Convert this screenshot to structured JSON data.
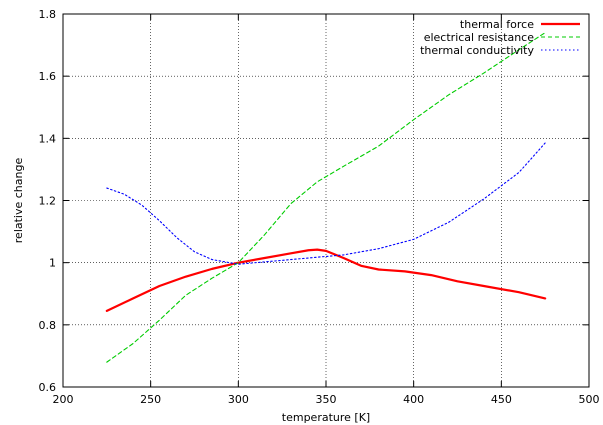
{
  "chart_data": {
    "type": "line",
    "title": "",
    "xlabel": "temperature [K]",
    "ylabel": "relative change",
    "xlim": [
      200,
      500
    ],
    "ylim": [
      0.6,
      1.8
    ],
    "xticks": [
      200,
      250,
      300,
      350,
      400,
      450,
      500
    ],
    "yticks": [
      0.6,
      0.8,
      1.0,
      1.2,
      1.4,
      1.6,
      1.8
    ],
    "xtick_labels": [
      "200",
      "250",
      "300",
      "350",
      "400",
      "450",
      "500"
    ],
    "ytick_labels": [
      "0.6",
      "0.8",
      "1",
      "1.2",
      "1.4",
      "1.6",
      "1.8"
    ],
    "grid": true,
    "legend_position": "top-right",
    "series": [
      {
        "name": "thermal force",
        "color": "#ff0000",
        "style": "solid",
        "x": [
          225,
          240,
          255,
          270,
          285,
          300,
          315,
          330,
          340,
          345,
          350,
          360,
          370,
          380,
          395,
          410,
          425,
          440,
          460,
          475
        ],
        "y": [
          0.845,
          0.885,
          0.925,
          0.955,
          0.98,
          1.0,
          1.015,
          1.03,
          1.04,
          1.042,
          1.038,
          1.015,
          0.99,
          0.978,
          0.972,
          0.96,
          0.94,
          0.925,
          0.905,
          0.885
        ]
      },
      {
        "name": "electrical resistance",
        "color": "#00cc00",
        "style": "dashed",
        "x": [
          225,
          240,
          255,
          270,
          285,
          300,
          315,
          330,
          345,
          360,
          380,
          400,
          420,
          440,
          460,
          475
        ],
        "y": [
          0.68,
          0.74,
          0.815,
          0.895,
          0.95,
          1.0,
          1.09,
          1.19,
          1.26,
          1.31,
          1.375,
          1.46,
          1.54,
          1.61,
          1.685,
          1.74
        ]
      },
      {
        "name": "thermal conductivity",
        "color": "#0000ff",
        "style": "dotted",
        "x": [
          225,
          235,
          245,
          255,
          265,
          275,
          285,
          300,
          320,
          340,
          360,
          380,
          400,
          420,
          440,
          460,
          475
        ],
        "y": [
          1.24,
          1.22,
          1.185,
          1.135,
          1.08,
          1.035,
          1.01,
          0.995,
          1.005,
          1.015,
          1.025,
          1.045,
          1.075,
          1.13,
          1.205,
          1.29,
          1.385
        ]
      }
    ]
  }
}
